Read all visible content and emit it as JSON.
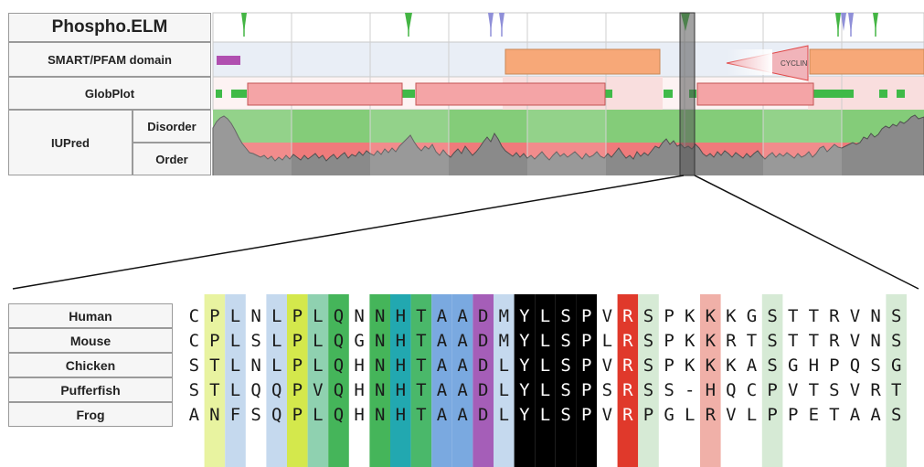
{
  "tracks": {
    "phospho_elm": "Phospho.ELM",
    "smart_pfam": "SMART/PFAM domain",
    "globplot": "GlobPlot",
    "iupred": "IUPred",
    "disorder": "Disorder",
    "order": "Order"
  },
  "domains": {
    "cyclin_label": "CYCLIN"
  },
  "alignment": {
    "species": [
      {
        "name": "Human",
        "seq": "CPLNLPLQNNHTAADMYLSPVRSPKKKGSTTRVNS"
      },
      {
        "name": "Mouse",
        "seq": "CPLSLPLQGNHTAADMYLSPLRSPKKRTSTTRVNS"
      },
      {
        "name": "Chicken",
        "seq": "STLNLPLQHNHTAADLYLSPVRSPKKKASGHPQSG"
      },
      {
        "name": "Pufferfish",
        "seq": "STLQQPVQHNHTAADLYLSPSRSS-HQCPVTSVRT"
      },
      {
        "name": "Frog",
        "seq": "ANFSQPLQHNHTAADLYLSPVRPGLRVLPPETAAS"
      }
    ],
    "column_colors": [
      "",
      "#e8f3a0",
      "#c5d9ee",
      "",
      "#c5d9ee",
      "#d4e84c",
      "#8fd1b0",
      "#45b55a",
      "",
      "#45b55a",
      "#22a8b0",
      "#4ab86a",
      "#7aa9e0",
      "#7aa9e0",
      "#a55eb8",
      "#c5d9ee",
      "#000000",
      "#000000",
      "#000000",
      "#000000",
      "",
      "#e0392b",
      "#d6ead5",
      "",
      "",
      "#f0b0a8",
      "",
      "",
      "#d6ead5",
      "",
      "",
      "",
      "",
      "",
      "#d6ead5"
    ],
    "column_text_colors": [
      "",
      "",
      "",
      "",
      "",
      "",
      "",
      "",
      "",
      "",
      "",
      "",
      "",
      "",
      "",
      "",
      "#ffffff",
      "#ffffff",
      "#ffffff",
      "#ffffff",
      "",
      "#ffffff",
      "",
      "",
      "",
      "",
      "",
      "",
      "",
      "",
      "",
      "",
      "",
      "",
      ""
    ]
  }
}
